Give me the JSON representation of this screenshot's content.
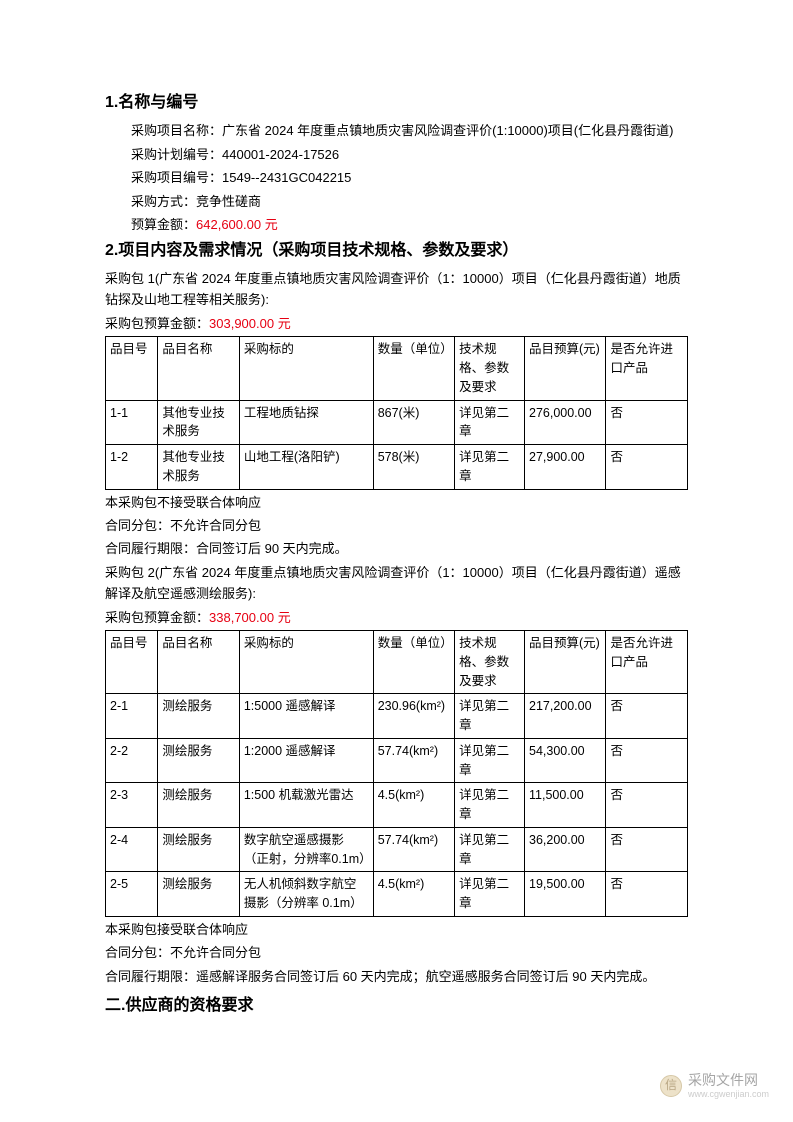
{
  "section1": {
    "title": "1.名称与编号",
    "project_name_label": "采购项目名称：",
    "project_name": "广东省 2024 年度重点镇地质灾害风险调查评价(1:10000)项目(仁化县丹霞街道)",
    "plan_no_label": "采购计划编号：",
    "plan_no": "440001-2024-17526",
    "project_no_label": "采购项目编号：",
    "project_no": "1549--2431GC042215",
    "method_label": "采购方式：",
    "method": "竞争性磋商",
    "budget_label": "预算金额：",
    "budget_amount": "642,600.00 元"
  },
  "section2": {
    "title": "2.项目内容及需求情况（采购项目技术规格、参数及要求）",
    "package1": {
      "desc": "采购包 1(广东省 2024 年度重点镇地质灾害风险调查评价（1：10000）项目（仁化县丹霞街道）地质钻探及山地工程等相关服务):",
      "budget_label": "采购包预算金额：",
      "budget_amount": "303,900.00 元",
      "notes": [
        "本采购包不接受联合体响应",
        "合同分包：不允许合同分包",
        "合同履行期限：合同签订后 90 天内完成。"
      ]
    },
    "package2": {
      "desc": "采购包 2(广东省 2024 年度重点镇地质灾害风险调查评价（1：10000）项目（仁化县丹霞街道）遥感解译及航空遥感测绘服务):",
      "budget_label": "采购包预算金额：",
      "budget_amount": "338,700.00 元",
      "notes": [
        "本采购包接受联合体响应",
        "合同分包：不允许合同分包",
        "合同履行期限：遥感解译服务合同签订后 60 天内完成；航空遥感服务合同签订后 90 天内完成。"
      ]
    }
  },
  "table_headers": {
    "c0": "品目号",
    "c1": "品目名称",
    "c2": "采购标的",
    "c3": "数量（单位）",
    "c4": "技术规格、参数及要求",
    "c5": "品目预算(元)",
    "c6": "是否允许进口产品"
  },
  "table1_rows": [
    {
      "c0": "1-1",
      "c1": "其他专业技术服务",
      "c2": "工程地质钻探",
      "c3": "867(米)",
      "c4": "详见第二章",
      "c5": "276,000.00",
      "c6": "否"
    },
    {
      "c0": "1-2",
      "c1": "其他专业技术服务",
      "c2": "山地工程(洛阳铲)",
      "c3": "578(米)",
      "c4": "详见第二章",
      "c5": "27,900.00",
      "c6": "否"
    }
  ],
  "table2_rows": [
    {
      "c0": "2-1",
      "c1": "测绘服务",
      "c2": "1:5000 遥感解译",
      "c3": "230.96(km²)",
      "c4": "详见第二章",
      "c5": "217,200.00",
      "c6": "否"
    },
    {
      "c0": "2-2",
      "c1": "测绘服务",
      "c2": "1:2000 遥感解译",
      "c3": "57.74(km²)",
      "c4": "详见第二章",
      "c5": "54,300.00",
      "c6": "否"
    },
    {
      "c0": "2-3",
      "c1": "测绘服务",
      "c2": "1:500 机载激光雷达",
      "c3": "4.5(km²)",
      "c4": "详见第二章",
      "c5": "11,500.00",
      "c6": "否"
    },
    {
      "c0": "2-4",
      "c1": "测绘服务",
      "c2": "数字航空遥感摄影（正射，分辨率0.1m）",
      "c3": "57.74(km²)",
      "c4": "详见第二章",
      "c5": "36,200.00",
      "c6": "否"
    },
    {
      "c0": "2-5",
      "c1": "测绘服务",
      "c2": "无人机倾斜数字航空摄影（分辨率 0.1m）",
      "c3": "4.5(km²)",
      "c4": "详见第二章",
      "c5": "19,500.00",
      "c6": "否"
    }
  ],
  "section3": {
    "title": "二.供应商的资格要求"
  },
  "watermark": {
    "icon": "信",
    "main": "采购文件网",
    "sub": "www.cgwenjian.com"
  },
  "colors": {
    "text": "#000000",
    "red": "#e60012",
    "border": "#000000",
    "bg": "#ffffff"
  },
  "typography": {
    "body_fontsize": 13,
    "heading_fontsize": 16,
    "table_fontsize": 12.5,
    "line_height": 1.65
  }
}
